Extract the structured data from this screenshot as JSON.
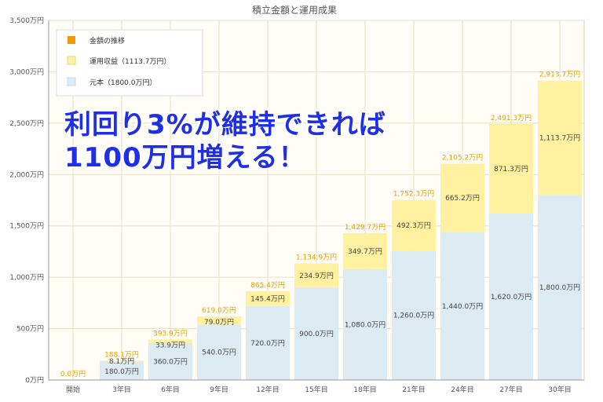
{
  "overlay": {
    "line1": "利回り3%が維持できれば",
    "line2": "1100万円増える！"
  },
  "colors": {
    "principal": "#dcebf2",
    "gain": "#fff1a0",
    "trend": "#f39800",
    "total_label": "#e8a000",
    "overlay_text": "#1e2fe6",
    "plot_bg": "#fffdf5",
    "grid": "#e6e0c8"
  },
  "chart_data": {
    "type": "bar",
    "stacked": true,
    "title": "積立金額と運用成果",
    "xlabel": "",
    "ylabel": "",
    "ylim": [
      0,
      3500
    ],
    "yticks": [
      0,
      500,
      1000,
      1500,
      2000,
      2500,
      3000,
      3500
    ],
    "ytick_labels": [
      "0万円",
      "500万円",
      "1,000万円",
      "1,500万円",
      "2,000万円",
      "2,500万円",
      "3,000万円",
      "3,500万円"
    ],
    "grid": true,
    "legend_position": "top-left",
    "categories": [
      "開始",
      "3年目",
      "6年目",
      "9年目",
      "12年目",
      "15年目",
      "18年目",
      "21年目",
      "24年目",
      "27年目",
      "30年目"
    ],
    "series": [
      {
        "name": "元本（1800.0万円）",
        "values": [
          0,
          180,
          360,
          540,
          720,
          900,
          1080,
          1260,
          1440,
          1620,
          1800
        ],
        "labels": [
          "",
          "180.0万円",
          "360.0万円",
          "540.0万円",
          "720.0万円",
          "900.0万円",
          "1,080.0万円",
          "1,260.0万円",
          "1,440.0万円",
          "1,620.0万円",
          "1,800.0万円"
        ]
      },
      {
        "name": "運用収益（1113.7万円）",
        "values": [
          0,
          8.1,
          33.9,
          79.0,
          145.4,
          234.9,
          349.7,
          492.3,
          665.2,
          871.3,
          1113.7
        ],
        "labels": [
          "",
          "8.1万円",
          "33.9万円",
          "79.0万円",
          "145.4万円",
          "234.9万円",
          "349.7万円",
          "492.3万円",
          "665.2万円",
          "871.3万円",
          "1,113.7万円"
        ]
      }
    ],
    "trend_series_name": "金額の推移",
    "totals": [
      0,
      188.1,
      393.9,
      619.0,
      865.4,
      1134.9,
      1429.7,
      1752.3,
      2105.2,
      2491.3,
      2913.7
    ],
    "total_labels": [
      "0.0万円",
      "188.1万円",
      "393.9万円",
      "619.0万円",
      "865.4万円",
      "1,134.9万円",
      "1,429.7万円",
      "1,752.3万円",
      "2,105.2万円",
      "2,491.3万円",
      "2,913.7万円"
    ]
  }
}
